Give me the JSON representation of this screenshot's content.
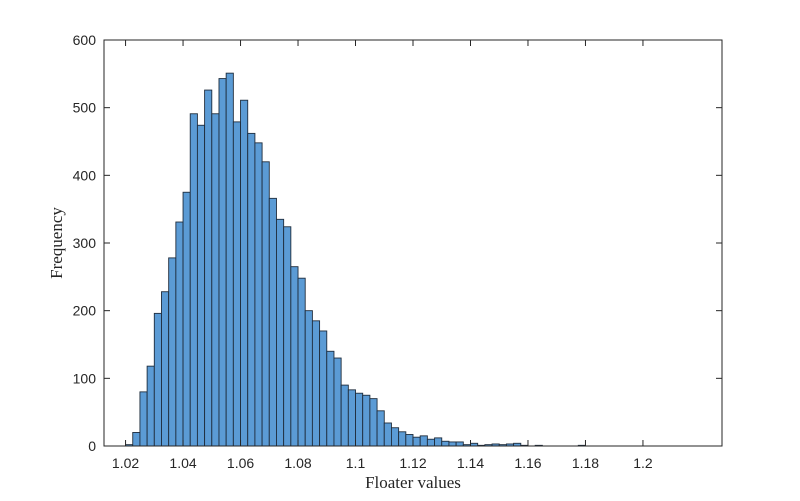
{
  "chart_data": {
    "type": "bar",
    "subtype": "histogram",
    "title": "",
    "xlabel": "Floater values",
    "ylabel": "Frequency",
    "xlim": [
      1.0125,
      1.2275
    ],
    "ylim": [
      0,
      600
    ],
    "bin_width": 0.0025,
    "bin_start": 1.02,
    "xticks": [
      1.02,
      1.04,
      1.06,
      1.08,
      1.1,
      1.12,
      1.14,
      1.16,
      1.18,
      1.2
    ],
    "xtick_labels": [
      "1.02",
      "1.04",
      "1.06",
      "1.08",
      "1.1",
      "1.12",
      "1.14",
      "1.16",
      "1.18",
      "1.2"
    ],
    "yticks": [
      0,
      100,
      200,
      300,
      400,
      500,
      600
    ],
    "ytick_labels": [
      "0",
      "100",
      "200",
      "300",
      "400",
      "500",
      "600"
    ],
    "values": [
      2,
      20,
      80,
      118,
      196,
      228,
      278,
      331,
      375,
      491,
      474,
      526,
      491,
      543,
      551,
      479,
      511,
      462,
      448,
      420,
      366,
      335,
      324,
      265,
      248,
      200,
      185,
      170,
      140,
      130,
      90,
      83,
      78,
      75,
      70,
      52,
      34,
      27,
      21,
      17,
      13,
      15,
      10,
      12,
      7,
      6,
      6,
      2,
      4,
      1,
      2,
      3,
      2,
      3,
      4,
      1,
      0,
      1,
      0,
      0,
      0,
      0,
      0,
      1
    ],
    "bar_color": "#5b9bd5",
    "edge_color": "#1f2d3d",
    "grid": false,
    "legend": "none"
  }
}
